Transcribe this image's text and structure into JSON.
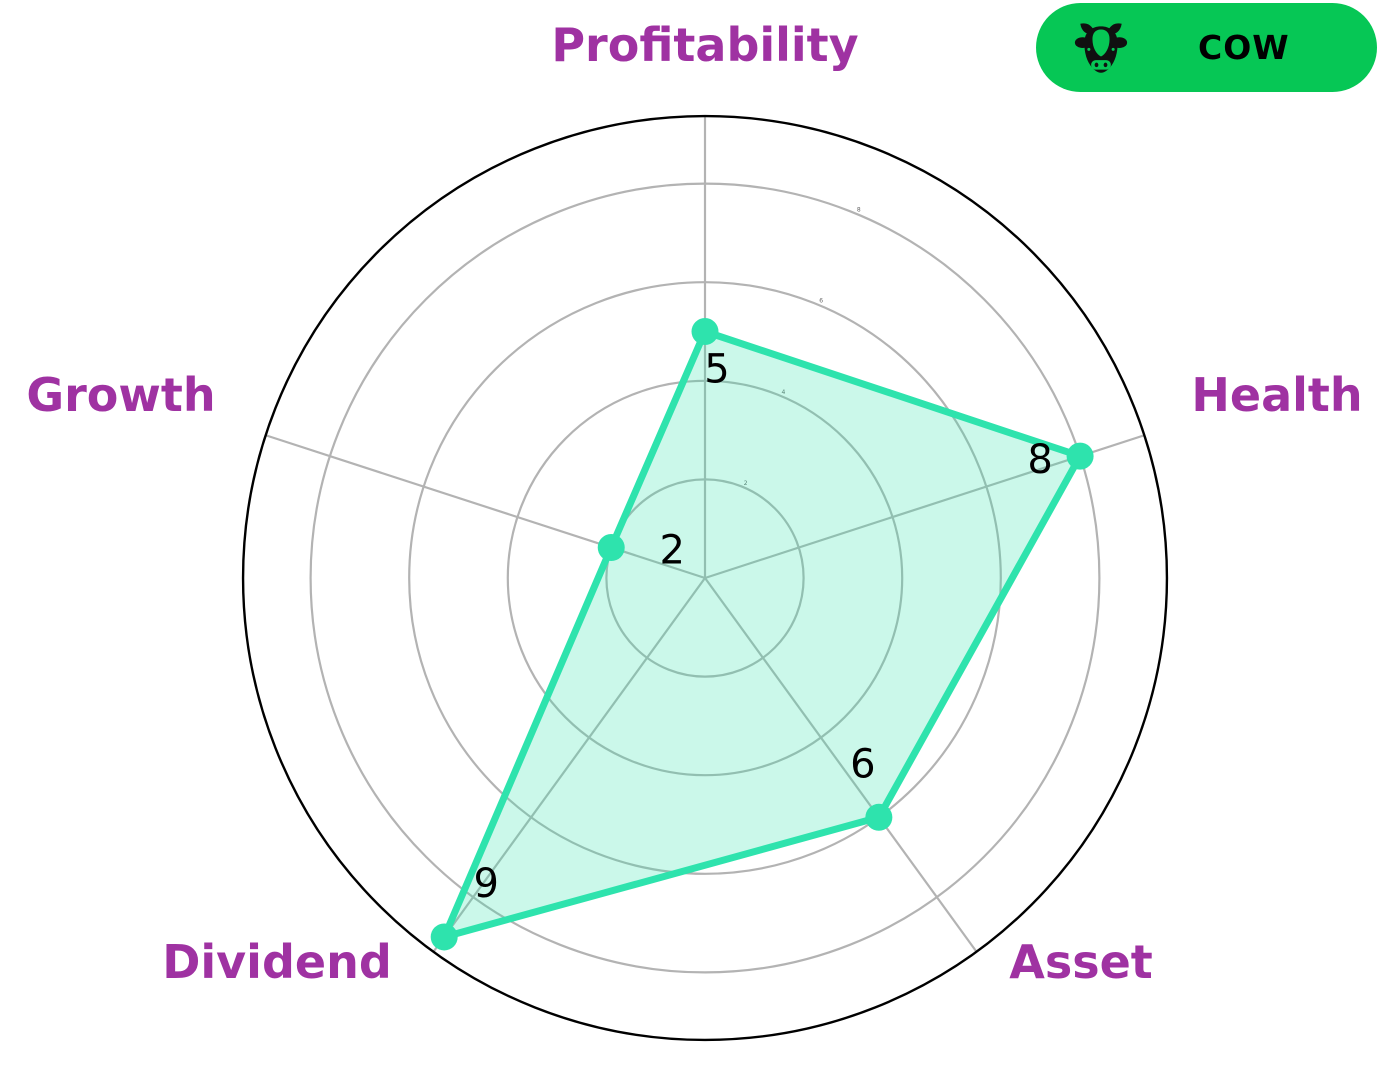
{
  "badge": {
    "label": "COW",
    "icon": "cow-icon",
    "background_color": "#06c755",
    "label_color": "#000000"
  },
  "chart_data": {
    "type": "radar",
    "series_name": "COW",
    "categories": [
      "Profitability",
      "Health",
      "Asset",
      "Dividend",
      "Growth"
    ],
    "values": [
      5,
      8,
      6,
      9,
      2
    ],
    "r_ticks": [
      2,
      4,
      6,
      8
    ],
    "r_max": 9.37,
    "angle_start_deg": 90,
    "direction": "clockwise",
    "grid": true,
    "legend_position": "top-right",
    "colors": {
      "series_line": "#2ee3ad",
      "series_fill_opacity": 0.25,
      "marker": "#2ee3ad",
      "grid_line": "#b3b3b3",
      "outer_ring": "#000000",
      "axis_label": "#9f32a2",
      "value_label": "#000000"
    }
  }
}
